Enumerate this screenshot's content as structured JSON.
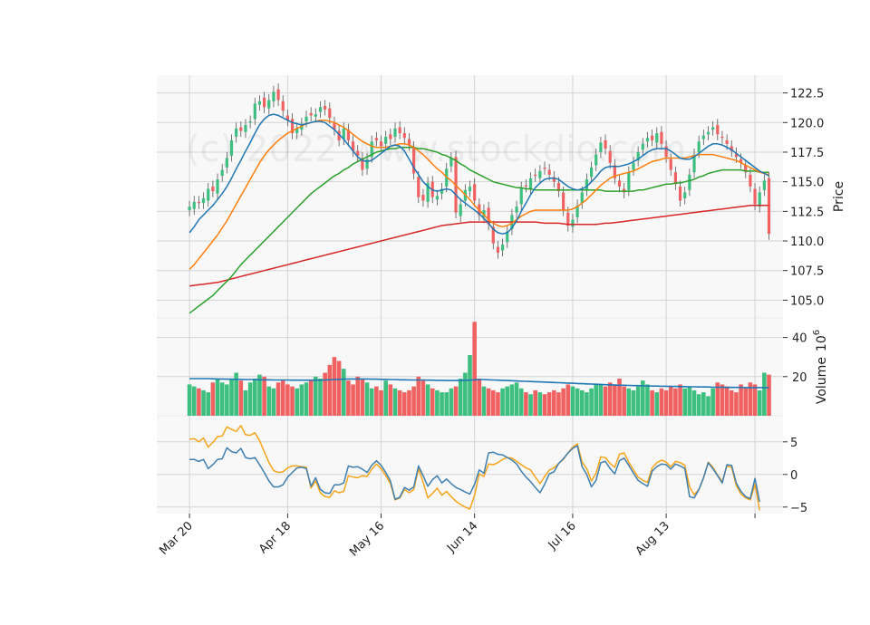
{
  "chart_data": {
    "type": "candlestick",
    "watermark": "(c) 2022 www.stockdio.com",
    "colors": {
      "up": "#3dbf80",
      "down": "#f06262",
      "wick": "#555555",
      "ma_fast": "#1f77b4",
      "ma_mid": "#ff7f0e",
      "ma_slow": "#2ca02c",
      "ma_long": "#d62728",
      "volume_ma": "#1f77b4",
      "osc_a": "#f5a51b",
      "osc_b": "#3f7fb0",
      "panel_bg": "#f8f8f8",
      "grid": "#d4d4d4"
    },
    "x_ticks": [
      {
        "label": "Mar 20",
        "index": 0
      },
      {
        "label": "Apr 18",
        "index": 21
      },
      {
        "label": "May 16",
        "index": 41
      },
      {
        "label": "Jun 14",
        "index": 61
      },
      {
        "label": "Jul 16",
        "index": 82
      },
      {
        "label": "Aug 13",
        "index": 102
      },
      {
        "label": "",
        "index": 121
      }
    ],
    "x_range": [
      -7,
      127
    ],
    "price_panel": {
      "ylabel": "Price",
      "ylim": [
        103.5,
        124.0
      ],
      "yticks": [
        "105.0",
        "107.5",
        "110.0",
        "112.5",
        "115.0",
        "117.5",
        "120.0",
        "122.5"
      ],
      "close": [
        112.9,
        113.3,
        113.2,
        113.6,
        114.4,
        114.2,
        115.2,
        116.0,
        117.0,
        118.5,
        119.5,
        119.3,
        119.8,
        120.1,
        121.6,
        121.8,
        121.3,
        121.9,
        122.6,
        121.9,
        121.0,
        120.2,
        119.1,
        119.5,
        119.9,
        120.5,
        120.6,
        120.7,
        121.3,
        121.1,
        120.4,
        119.4,
        118.5,
        119.5,
        118.5,
        117.6,
        117.2,
        116.0,
        116.9,
        118.4,
        118.5,
        118.0,
        118.8,
        118.6,
        119.5,
        119.1,
        118.7,
        118.1,
        115.7,
        113.7,
        113.4,
        114.9,
        113.7,
        113.8,
        114.4,
        116.1,
        117.0,
        112.4,
        113.1,
        114.3,
        114.6,
        113.4,
        112.2,
        112.6,
        111.4,
        109.8,
        109.0,
        109.7,
        110.8,
        112.2,
        112.9,
        114.5,
        114.6,
        115.3,
        115.5,
        115.9,
        116.1,
        115.6,
        115.0,
        114.2,
        112.6,
        111.3,
        111.8,
        113.0,
        114.1,
        115.2,
        116.2,
        117.3,
        118.3,
        117.8,
        116.6,
        115.3,
        114.6,
        114.1,
        115.8,
        116.6,
        117.5,
        118.2,
        118.7,
        118.5,
        119.1,
        118.2,
        117.1,
        116.0,
        114.8,
        113.4,
        114.1,
        115.6,
        117.3,
        118.4,
        118.9,
        119.2,
        119.6,
        119.0,
        118.7,
        118.2,
        117.6,
        117.1,
        116.6,
        115.8,
        114.6,
        113.1,
        114.1,
        115.1,
        110.6
      ],
      "open": [
        112.6,
        112.7,
        113.3,
        113.2,
        113.4,
        114.6,
        114.0,
        115.5,
        116.2,
        117.2,
        118.8,
        119.6,
        119.2,
        120.0,
        120.3,
        121.5,
        122.1,
        121.2,
        121.8,
        122.8,
        121.8,
        120.6,
        120.3,
        119.1,
        119.4,
        120.1,
        120.8,
        120.5,
        120.9,
        121.4,
        121.2,
        120.0,
        119.3,
        118.6,
        119.4,
        118.4,
        117.6,
        117.0,
        116.1,
        117.1,
        118.7,
        118.4,
        118.2,
        119.0,
        118.8,
        119.6,
        119.1,
        118.6,
        117.9,
        115.4,
        113.9,
        113.3,
        115.0,
        113.5,
        114.0,
        114.6,
        116.3,
        117.1,
        112.1,
        113.4,
        114.2,
        114.8,
        113.1,
        112.0,
        112.8,
        111.2,
        109.5,
        109.2,
        109.9,
        111.0,
        112.4,
        113.1,
        114.7,
        114.4,
        115.6,
        115.3,
        116.2,
        116.0,
        115.4,
        114.9,
        114.1,
        112.4,
        111.2,
        112.0,
        113.2,
        114.3,
        115.4,
        116.4,
        117.5,
        118.5,
        117.6,
        116.4,
        115.1,
        114.4,
        114.3,
        116.0,
        116.8,
        117.7,
        118.4,
        118.9,
        118.3,
        119.2,
        118.0,
        116.9,
        115.8,
        114.6,
        113.6,
        114.3,
        115.8,
        117.5,
        118.6,
        119.0,
        119.4,
        119.8,
        118.8,
        118.5,
        118.0,
        117.4,
        116.9,
        116.4,
        115.6,
        114.4,
        112.9,
        114.3,
        115.3
      ],
      "ma_fast": [
        110.7,
        111.2,
        111.8,
        112.2,
        112.6,
        113.0,
        113.5,
        114.0,
        114.6,
        115.3,
        116.1,
        116.8,
        117.6,
        118.3,
        119.1,
        119.8,
        120.3,
        120.6,
        120.7,
        120.6,
        120.4,
        120.2,
        120.0,
        119.9,
        119.8,
        119.9,
        120.0,
        120.1,
        120.1,
        120.0,
        119.7,
        119.4,
        119.0,
        118.6,
        118.1,
        117.6,
        117.1,
        116.8,
        116.7,
        116.8,
        117.1,
        117.4,
        117.7,
        118.0,
        118.1,
        118.0,
        117.6,
        116.9,
        116.2,
        115.6,
        115.0,
        114.6,
        114.3,
        114.2,
        114.3,
        114.4,
        114.3,
        113.9,
        113.5,
        113.2,
        112.9,
        112.6,
        112.3,
        111.9,
        111.5,
        111.0,
        110.7,
        110.6,
        110.7,
        111.1,
        111.7,
        112.5,
        113.2,
        113.9,
        114.5,
        114.9,
        115.2,
        115.3,
        115.3,
        115.2,
        114.9,
        114.6,
        114.4,
        114.3,
        114.4,
        114.6,
        115.0,
        115.4,
        115.9,
        116.2,
        116.3,
        116.3,
        116.3,
        116.4,
        116.5,
        116.7,
        116.9,
        117.2,
        117.5,
        117.7,
        117.8,
        117.8,
        117.8,
        117.6,
        117.3,
        117.0,
        116.9,
        116.9,
        117.1,
        117.4,
        117.7,
        118.0,
        118.2,
        118.2,
        118.1,
        117.9,
        117.7,
        117.4,
        117.1,
        116.8,
        116.5,
        116.2,
        115.9,
        115.7,
        115.5
      ],
      "ma_mid": [
        107.6,
        108.0,
        108.5,
        109.0,
        109.5,
        110.0,
        110.5,
        111.1,
        111.7,
        112.4,
        113.1,
        113.8,
        114.5,
        115.2,
        115.9,
        116.6,
        117.2,
        117.7,
        118.1,
        118.5,
        118.8,
        119.1,
        119.3,
        119.5,
        119.7,
        119.9,
        120.0,
        120.1,
        120.2,
        120.2,
        120.1,
        120.0,
        119.8,
        119.6,
        119.3,
        119.0,
        118.7,
        118.4,
        118.2,
        118.0,
        117.9,
        117.9,
        117.9,
        118.0,
        118.1,
        118.2,
        118.2,
        118.1,
        117.9,
        117.6,
        117.3,
        116.9,
        116.5,
        116.1,
        115.8,
        115.4,
        115.1,
        114.7,
        114.3,
        113.9,
        113.5,
        113.0,
        112.6,
        112.2,
        111.8,
        111.5,
        111.3,
        111.2,
        111.3,
        111.5,
        111.8,
        112.1,
        112.3,
        112.5,
        112.6,
        112.6,
        112.6,
        112.6,
        112.6,
        112.6,
        112.6,
        112.6,
        112.7,
        112.9,
        113.2,
        113.5,
        113.9,
        114.3,
        114.7,
        115.0,
        115.3,
        115.5,
        115.6,
        115.7,
        115.8,
        115.9,
        116.1,
        116.3,
        116.5,
        116.7,
        116.8,
        116.9,
        117.0,
        117.0,
        117.0,
        117.0,
        117.0,
        117.1,
        117.2,
        117.3,
        117.3,
        117.3,
        117.3,
        117.2,
        117.1,
        117.0,
        116.9,
        116.8,
        116.6,
        116.4,
        116.2,
        116.0,
        115.8,
        115.7,
        115.6
      ],
      "ma_slow": [
        103.9,
        104.2,
        104.5,
        104.8,
        105.1,
        105.4,
        105.8,
        106.2,
        106.6,
        107.0,
        107.5,
        108.0,
        108.4,
        108.8,
        109.2,
        109.6,
        110.0,
        110.4,
        110.8,
        111.2,
        111.6,
        112.0,
        112.4,
        112.8,
        113.2,
        113.6,
        114.0,
        114.3,
        114.6,
        114.9,
        115.2,
        115.5,
        115.7,
        116.0,
        116.2,
        116.5,
        116.7,
        116.9,
        117.1,
        117.3,
        117.5,
        117.6,
        117.7,
        117.8,
        117.8,
        117.9,
        117.9,
        117.9,
        117.9,
        117.8,
        117.8,
        117.7,
        117.6,
        117.5,
        117.3,
        117.2,
        117.0,
        116.8,
        116.5,
        116.3,
        116.0,
        115.8,
        115.6,
        115.4,
        115.2,
        115.0,
        114.9,
        114.8,
        114.7,
        114.6,
        114.5,
        114.5,
        114.4,
        114.4,
        114.3,
        114.3,
        114.3,
        114.3,
        114.3,
        114.3,
        114.3,
        114.3,
        114.3,
        114.3,
        114.3,
        114.3,
        114.3,
        114.3,
        114.3,
        114.2,
        114.2,
        114.2,
        114.2,
        114.2,
        114.2,
        114.2,
        114.3,
        114.3,
        114.4,
        114.5,
        114.6,
        114.7,
        114.8,
        114.8,
        114.9,
        114.9,
        115.0,
        115.1,
        115.2,
        115.4,
        115.5,
        115.7,
        115.8,
        115.9,
        116.0,
        116.0,
        116.0,
        116.0,
        116.0,
        115.9,
        115.9,
        115.9,
        115.8,
        115.8,
        115.8
      ],
      "ma_long": [
        106.2,
        106.25,
        106.3,
        106.35,
        106.4,
        106.45,
        106.5,
        106.6,
        106.7,
        106.8,
        106.9,
        107.0,
        107.1,
        107.2,
        107.3,
        107.4,
        107.5,
        107.6,
        107.7,
        107.8,
        107.9,
        108.0,
        108.1,
        108.2,
        108.3,
        108.4,
        108.5,
        108.6,
        108.7,
        108.8,
        108.9,
        109.0,
        109.1,
        109.2,
        109.3,
        109.4,
        109.5,
        109.6,
        109.7,
        109.8,
        109.9,
        110.0,
        110.1,
        110.2,
        110.3,
        110.4,
        110.5,
        110.6,
        110.7,
        110.8,
        110.9,
        111.0,
        111.1,
        111.2,
        111.3,
        111.35,
        111.4,
        111.45,
        111.5,
        111.55,
        111.6,
        111.6,
        111.6,
        111.6,
        111.6,
        111.6,
        111.6,
        111.6,
        111.6,
        111.6,
        111.6,
        111.6,
        111.6,
        111.6,
        111.6,
        111.55,
        111.5,
        111.5,
        111.5,
        111.5,
        111.45,
        111.4,
        111.4,
        111.4,
        111.4,
        111.4,
        111.4,
        111.4,
        111.45,
        111.5,
        111.5,
        111.55,
        111.6,
        111.65,
        111.7,
        111.75,
        111.8,
        111.85,
        111.9,
        111.95,
        112.0,
        112.05,
        112.1,
        112.15,
        112.2,
        112.25,
        112.3,
        112.35,
        112.4,
        112.45,
        112.5,
        112.55,
        112.6,
        112.65,
        112.7,
        112.75,
        112.8,
        112.85,
        112.9,
        112.95,
        113.0,
        113.0,
        113.0,
        113.0,
        113.0
      ]
    },
    "volume_panel": {
      "ylabel": "Volume",
      "exponent": "6",
      "ylim": [
        0,
        50
      ],
      "yticks": [
        "20",
        "40"
      ],
      "values": [
        16,
        15,
        14,
        13,
        12,
        17,
        19,
        17,
        16,
        19,
        22,
        18,
        13,
        17,
        19,
        21,
        20,
        15,
        14,
        17,
        18,
        16,
        15,
        14,
        16,
        17,
        18,
        20,
        19,
        22,
        26,
        30,
        28,
        24,
        18,
        16,
        20,
        19,
        17,
        14,
        15,
        13,
        18,
        16,
        14,
        13,
        12,
        13,
        15,
        20,
        18,
        16,
        14,
        13,
        12,
        12,
        14,
        15,
        19,
        22,
        31,
        48,
        19,
        15,
        14,
        13,
        12,
        14,
        15,
        16,
        17,
        14,
        12,
        11,
        13,
        12,
        11,
        12,
        13,
        12,
        14,
        16,
        15,
        14,
        13,
        12,
        14,
        16,
        16,
        15,
        17,
        16,
        19,
        15,
        14,
        13,
        15,
        18,
        16,
        13,
        12,
        14,
        13,
        15,
        14,
        16,
        14,
        15,
        13,
        11,
        12,
        10,
        14,
        17,
        16,
        15,
        13,
        12,
        16,
        14,
        17,
        16,
        13,
        22,
        21
      ],
      "ma": [
        19,
        19,
        19,
        19,
        19,
        18.9,
        18.8,
        18.8,
        18.7,
        18.7,
        18.6,
        18.6,
        18.5,
        18.5,
        18.5,
        18.4,
        18.4,
        18.4,
        18.3,
        18.3,
        18.3,
        18.3,
        18.2,
        18.2,
        18.2,
        18.2,
        18.2,
        18.2,
        18.2,
        18.3,
        18.4,
        18.5,
        18.6,
        18.7,
        18.8,
        18.8,
        18.8,
        18.8,
        18.8,
        18.7,
        18.7,
        18.6,
        18.6,
        18.5,
        18.5,
        18.4,
        18.4,
        18.3,
        18.3,
        18.3,
        18.3,
        18.2,
        18.2,
        18.1,
        18.1,
        18.0,
        18.0,
        18.0,
        18.0,
        18.1,
        18.2,
        18.4,
        18.5,
        18.5,
        18.4,
        18.3,
        18.2,
        18.1,
        18.0,
        17.9,
        17.8,
        17.7,
        17.6,
        17.5,
        17.4,
        17.3,
        17.2,
        17.1,
        17.0,
        16.9,
        16.8,
        16.7,
        16.6,
        16.5,
        16.4,
        16.3,
        16.2,
        16.1,
        16.0,
        15.9,
        15.8,
        15.7,
        15.6,
        15.6,
        15.5,
        15.4,
        15.4,
        15.3,
        15.3,
        15.2,
        15.2,
        15.1,
        15.1,
        15.0,
        15.0,
        14.9,
        14.9,
        14.8,
        14.8,
        14.7,
        14.7,
        14.7,
        14.6,
        14.6,
        14.6,
        14.5,
        14.5,
        14.5,
        14.5,
        14.4,
        14.4,
        14.4,
        14.4,
        14.4,
        14.4
      ]
    },
    "oscillator_panel": {
      "ylim": [
        -6,
        9
      ],
      "yticks": [
        {
          "label": "5",
          "value": 5
        },
        {
          "label": "0",
          "value": 0
        },
        {
          "label": "−5",
          "value": -5
        }
      ],
      "series_a": [
        5.4,
        5.5,
        5.0,
        5.6,
        4.2,
        4.9,
        5.8,
        5.9,
        7.3,
        6.9,
        6.6,
        7.5,
        6.1,
        6.0,
        6.4,
        5.2,
        3.5,
        1.8,
        0.6,
        0.3,
        0.4,
        1.0,
        1.3,
        1.3,
        1.2,
        1.1,
        -2.1,
        -1.0,
        -2.8,
        -3.4,
        -3.5,
        -2.5,
        -2.8,
        -2.6,
        -0.2,
        -0.4,
        -0.5,
        -0.2,
        -0.3,
        0.8,
        1.6,
        0.9,
        -0.2,
        -1.4,
        -3.9,
        -3.6,
        -2.3,
        -2.8,
        -2.3,
        0.9,
        -1.2,
        -3.6,
        -2.9,
        -2.1,
        -3.2,
        -2.6,
        -3.4,
        -4.1,
        -4.6,
        -5.0,
        -5.3,
        -3.2,
        0.1,
        -0.3,
        1.6,
        1.5,
        1.8,
        2.3,
        2.6,
        2.5,
        2.0,
        1.5,
        1.0,
        0.7,
        -0.4,
        -1.4,
        -0.3,
        0.7,
        1.0,
        1.7,
        2.3,
        3.3,
        4.2,
        4.7,
        1.9,
        0.9,
        -1.0,
        0.2,
        2.7,
        2.6,
        1.7,
        1.1,
        3.1,
        3.3,
        1.9,
        0.7,
        -0.4,
        -0.9,
        -1.2,
        1.0,
        1.8,
        2.2,
        1.9,
        1.2,
        2.0,
        1.8,
        1.4,
        -1.9,
        -3.1,
        -2.3,
        -0.6,
        1.9,
        1.1,
        -0.1,
        -1.1,
        1.3,
        1.1,
        -1.7,
        -3.0,
        -3.6,
        -3.9,
        -1.5,
        -5.5
      ],
      "series_b": [
        2.3,
        2.3,
        2.0,
        2.3,
        0.9,
        1.5,
        2.3,
        2.4,
        4.1,
        3.5,
        3.3,
        4.0,
        2.6,
        2.4,
        2.6,
        1.5,
        0.3,
        -1.0,
        -1.9,
        -1.9,
        -1.6,
        -0.4,
        0.3,
        1.0,
        1.1,
        0.9,
        -1.8,
        -0.5,
        -2.3,
        -2.8,
        -2.9,
        -1.6,
        -1.6,
        -1.3,
        1.3,
        1.1,
        1.2,
        0.8,
        0.3,
        1.4,
        2.1,
        1.4,
        0.3,
        -1.0,
        -3.8,
        -3.5,
        -2.0,
        -2.4,
        -1.9,
        1.3,
        -0.2,
        -1.8,
        -0.8,
        -0.2,
        -1.3,
        -0.7,
        -1.4,
        -2.0,
        -2.3,
        -2.7,
        -3.0,
        -1.5,
        0.7,
        0.2,
        3.3,
        3.4,
        3.1,
        3.0,
        2.6,
        2.2,
        1.6,
        0.5,
        -0.4,
        -1.1,
        -2.0,
        -2.8,
        -1.5,
        0.1,
        0.4,
        1.7,
        2.4,
        3.3,
        4.0,
        4.4,
        1.2,
        0.0,
        -1.9,
        -0.9,
        1.8,
        2.0,
        0.9,
        0.1,
        2.1,
        2.5,
        1.4,
        0.2,
        -0.9,
        -1.4,
        -1.8,
        0.5,
        1.2,
        1.6,
        1.5,
        0.8,
        1.6,
        1.3,
        0.9,
        -3.4,
        -3.6,
        -2.3,
        -0.5,
        1.8,
        0.9,
        -0.2,
        -1.3,
        1.5,
        1.4,
        -1.3,
        -2.6,
        -3.4,
        -3.7,
        -0.6,
        -4.2
      ]
    }
  }
}
